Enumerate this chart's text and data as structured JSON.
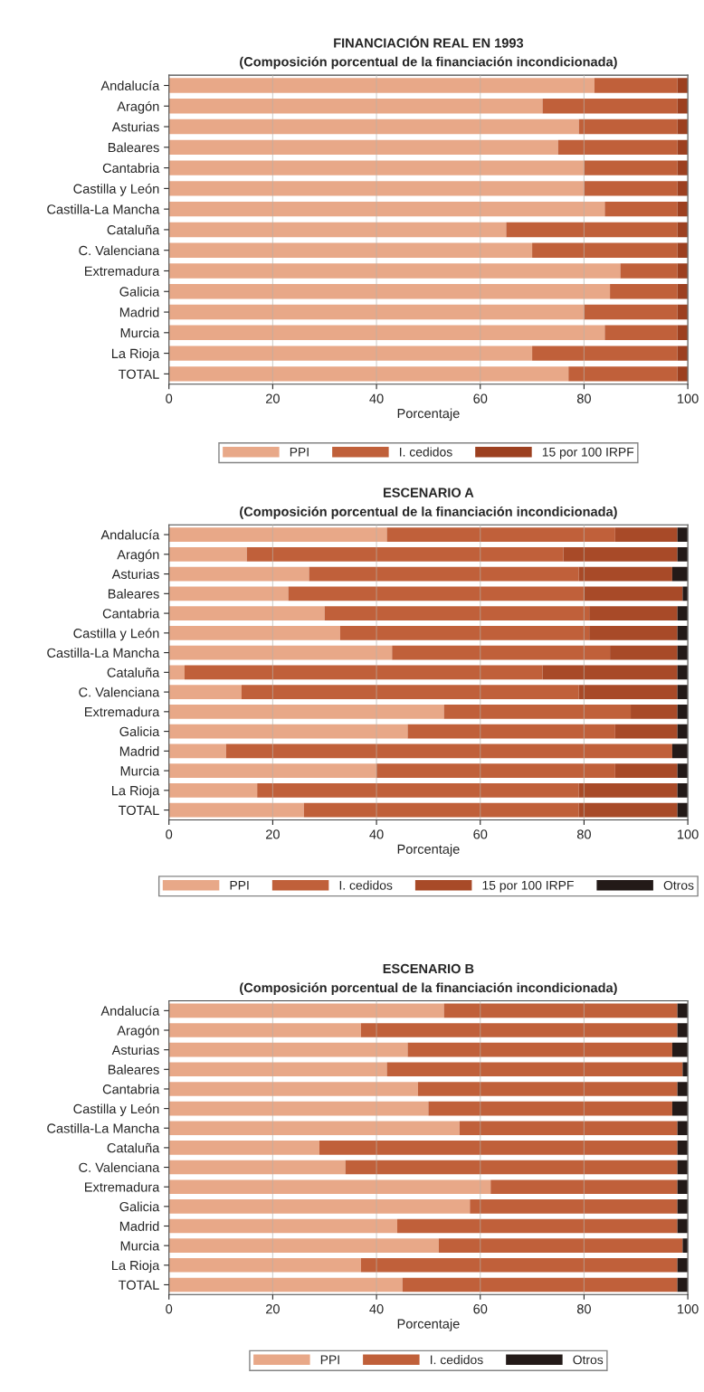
{
  "chart_data": [
    {
      "type": "bar",
      "orientation": "horizontal",
      "stacked": true,
      "title": "FINANCIACIÓN REAL EN 1993",
      "subtitle": "(Composición porcentual de la financiación incondicionada)",
      "xlabel": "Porcentaje",
      "categories": [
        "Andalucía",
        "Aragón",
        "Asturias",
        "Baleares",
        "Cantabria",
        "Castilla y León",
        "Castilla-La Mancha",
        "Cataluña",
        "C. Valenciana",
        "Extremadura",
        "Galicia",
        "Madrid",
        "Murcia",
        "La Rioja",
        "TOTAL"
      ],
      "series": [
        {
          "name": "PPI",
          "color": "#e8a888",
          "values": [
            82,
            72,
            79,
            75,
            80,
            80,
            84,
            65,
            70,
            87,
            85,
            80,
            84,
            70,
            77
          ]
        },
        {
          "name": "I. cedidos",
          "color": "#c0603a",
          "values": [
            16,
            26,
            19,
            23,
            18,
            18,
            14,
            33,
            28,
            11,
            13,
            18,
            14,
            28,
            21
          ]
        },
        {
          "name": "15 por 100 IRPF",
          "color": "#9c4020",
          "values": [
            2,
            2,
            2,
            2,
            2,
            2,
            2,
            2,
            2,
            2,
            2,
            2,
            2,
            2,
            2
          ]
        }
      ],
      "xlim": [
        0,
        100
      ],
      "xticks": [
        0,
        20,
        40,
        60,
        80,
        100
      ],
      "grid": "x",
      "legend": "bottom"
    },
    {
      "type": "bar",
      "orientation": "horizontal",
      "stacked": true,
      "title": "ESCENARIO A",
      "subtitle": "(Composición porcentual de la financiación incondicionada)",
      "xlabel": "Porcentaje",
      "categories": [
        "Andalucía",
        "Aragón",
        "Asturias",
        "Baleares",
        "Cantabria",
        "Castilla y León",
        "Castilla-La Mancha",
        "Cataluña",
        "C. Valenciana",
        "Extremadura",
        "Galicia",
        "Madrid",
        "Murcia",
        "La Rioja",
        "TOTAL"
      ],
      "series": [
        {
          "name": "PPI",
          "color": "#e8a888",
          "values": [
            42,
            15,
            27,
            23,
            30,
            33,
            43,
            3,
            14,
            53,
            46,
            11,
            40,
            17,
            26
          ]
        },
        {
          "name": "I. cedidos",
          "color": "#c0603a",
          "values": [
            44,
            61,
            52,
            57,
            51,
            48,
            42,
            69,
            65,
            36,
            40,
            86,
            46,
            62,
            53
          ]
        },
        {
          "name": "15 por 100 IRPF",
          "color": "#a84a28",
          "values": [
            12,
            22,
            18,
            19,
            17,
            17,
            13,
            26,
            19,
            9,
            12,
            0,
            12,
            19,
            19
          ]
        },
        {
          "name": "Otros",
          "color": "#231a18",
          "values": [
            2,
            2,
            3,
            1,
            2,
            2,
            2,
            2,
            2,
            2,
            2,
            3,
            2,
            2,
            2
          ]
        }
      ],
      "xlim": [
        0,
        100
      ],
      "xticks": [
        0,
        20,
        40,
        60,
        80,
        100
      ],
      "grid": "x",
      "legend": "bottom"
    },
    {
      "type": "bar",
      "orientation": "horizontal",
      "stacked": true,
      "title": "ESCENARIO B",
      "subtitle": "(Composición porcentual de la financiación incondicionada)",
      "xlabel": "Porcentaje",
      "categories": [
        "Andalucía",
        "Aragón",
        "Asturias",
        "Baleares",
        "Cantabria",
        "Castilla y León",
        "Castilla-La Mancha",
        "Cataluña",
        "C. Valenciana",
        "Extremadura",
        "Galicia",
        "Madrid",
        "Murcia",
        "La Rioja",
        "TOTAL"
      ],
      "series": [
        {
          "name": "PPI",
          "color": "#e8a888",
          "values": [
            53,
            37,
            46,
            42,
            48,
            50,
            56,
            29,
            34,
            62,
            58,
            44,
            52,
            37,
            45
          ]
        },
        {
          "name": "I. cedidos",
          "color": "#c0603a",
          "values": [
            45,
            61,
            51,
            57,
            50,
            47,
            42,
            69,
            64,
            36,
            40,
            54,
            47,
            61,
            53
          ]
        },
        {
          "name": "Otros",
          "color": "#231a18",
          "values": [
            2,
            2,
            3,
            1,
            2,
            3,
            2,
            2,
            2,
            2,
            2,
            2,
            1,
            2,
            2
          ]
        }
      ],
      "xlim": [
        0,
        100
      ],
      "xticks": [
        0,
        20,
        40,
        60,
        80,
        100
      ],
      "grid": "x",
      "legend": "bottom"
    }
  ]
}
